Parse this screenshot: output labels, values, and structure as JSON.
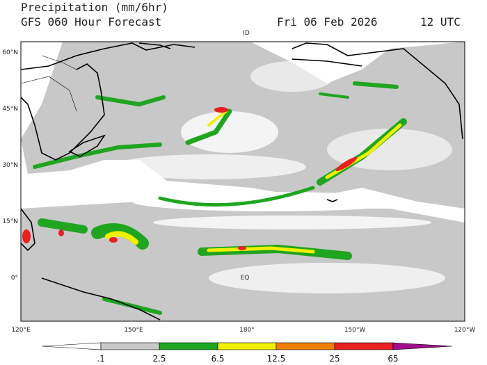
{
  "header": {
    "title": "Precipitation (mm/6hr)",
    "subtitle": "GFS 060 Hour Forecast",
    "date": "Fri 06 Feb 2026",
    "time": "12 UTC"
  },
  "map": {
    "lat_labels": [
      "60°N",
      "45°N",
      "30°N",
      "15°N",
      "0°"
    ],
    "lon_labels": [
      "120°E",
      "150°E",
      "180°",
      "150°W",
      "120°W"
    ],
    "place_labels": [
      "EQ",
      "ID"
    ]
  },
  "colorbar": {
    "labels": [
      ".1",
      "2.5",
      "6.5",
      "12.5",
      "25",
      "65"
    ]
  }
}
